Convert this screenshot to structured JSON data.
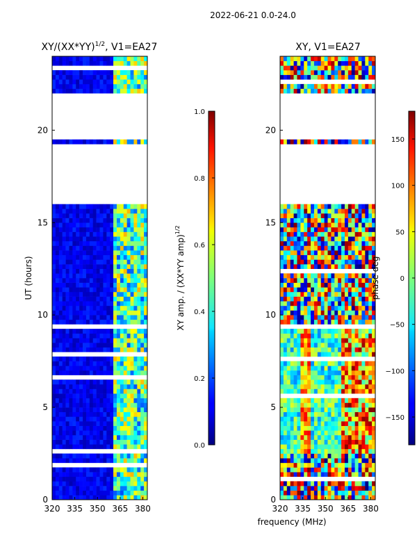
{
  "suptitle": "2022-06-21 0.0-24.0",
  "chart_data": [
    {
      "type": "heatmap",
      "title": "XY/(XX*YY)",
      "title_sup": "1/2",
      "title_suffix": ", V1=EA27",
      "xlabel": "",
      "ylabel": "UT (hours)",
      "xlim": [
        320,
        383
      ],
      "ylim": [
        0,
        24
      ],
      "xticks": [
        320,
        335,
        350,
        365,
        380
      ],
      "yticks": [
        0,
        5,
        10,
        15,
        20
      ],
      "colorbar": {
        "label": "XY amp. / (XX*YY amp)",
        "label_sup": "1/2",
        "range": [
          0.0,
          1.0
        ],
        "ticks": [
          "0.0",
          "0.2",
          "0.4",
          "0.6",
          "0.8",
          "1.0"
        ],
        "tick_values": [
          0.0,
          0.2,
          0.4,
          0.6,
          0.8,
          1.0
        ]
      }
    },
    {
      "type": "heatmap",
      "title": "XY, V1=EA27",
      "xlabel": "frequency (MHz)",
      "ylabel": "",
      "xlim": [
        320,
        383
      ],
      "ylim": [
        0,
        24
      ],
      "xticks": [
        320,
        335,
        350,
        365,
        380
      ],
      "yticks": [
        0,
        5,
        10,
        15,
        20
      ],
      "colorbar": {
        "label": "phase deg",
        "range": [
          -180,
          180
        ],
        "ticks": [
          "150",
          "100",
          "50",
          "0",
          "−50",
          "−100",
          "−150"
        ],
        "tick_values": [
          150,
          100,
          50,
          0,
          -50,
          -100,
          -150
        ]
      }
    }
  ],
  "data_gaps_ut_hours": [
    [
      16.0,
      19.2
    ],
    [
      19.5,
      22.0
    ],
    [
      2.4,
      2.5
    ],
    [
      9.2,
      9.3
    ]
  ]
}
